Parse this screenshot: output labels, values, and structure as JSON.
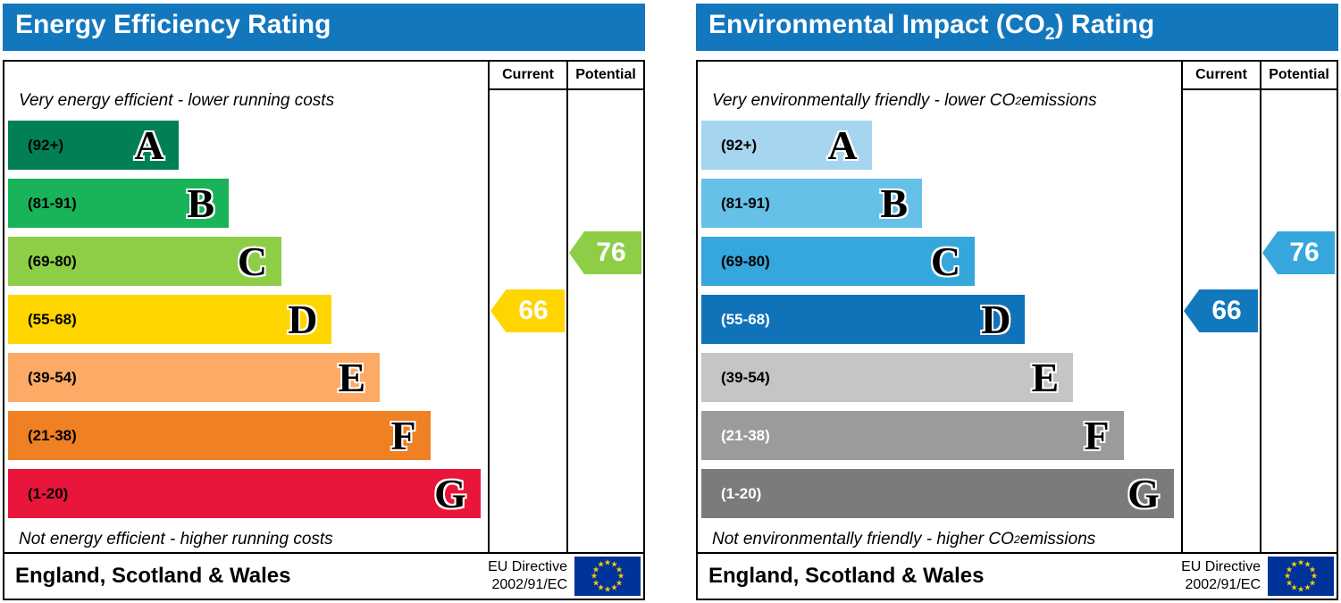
{
  "charts": [
    {
      "title": {
        "pre": "Energy Efficiency Rating",
        "sub": "",
        "post": ""
      },
      "columns": {
        "current": "Current",
        "potential": "Potential"
      },
      "top_note": {
        "pre": "Very energy efficient - lower running costs",
        "sub": "",
        "post": ""
      },
      "bottom_note": {
        "pre": "Not energy efficient - higher running costs",
        "sub": "",
        "post": ""
      },
      "bands": [
        {
          "letter": "A",
          "range": "(92+)",
          "color": "#008054",
          "label_color": "#000000",
          "width_pct": 35.5
        },
        {
          "letter": "B",
          "range": "(81-91)",
          "color": "#19b459",
          "label_color": "#000000",
          "width_pct": 46
        },
        {
          "letter": "C",
          "range": "(69-80)",
          "color": "#8dce46",
          "label_color": "#000000",
          "width_pct": 57
        },
        {
          "letter": "D",
          "range": "(55-68)",
          "color": "#ffd500",
          "label_color": "#000000",
          "width_pct": 67.5
        },
        {
          "letter": "E",
          "range": "(39-54)",
          "color": "#fcaa65",
          "label_color": "#000000",
          "width_pct": 77.5
        },
        {
          "letter": "F",
          "range": "(21-38)",
          "color": "#ef8023",
          "label_color": "#000000",
          "width_pct": 88
        },
        {
          "letter": "G",
          "range": "(1-20)",
          "color": "#e9153b",
          "label_color": "#000000",
          "width_pct": 98.5
        }
      ],
      "current": {
        "value": "66",
        "row": 3,
        "color": "#ffd500"
      },
      "potential": {
        "value": "76",
        "row": 2,
        "color": "#8dce46"
      },
      "footer": {
        "region": "England, Scotland & Wales",
        "directive_line1": "EU Directive",
        "directive_line2": "2002/91/EC"
      }
    },
    {
      "title": {
        "pre": "Environmental Impact (CO",
        "sub": "2",
        "post": ") Rating"
      },
      "columns": {
        "current": "Current",
        "potential": "Potential"
      },
      "top_note": {
        "pre": "Very environmentally friendly - lower CO",
        "sub": "2",
        "post": " emissions"
      },
      "bottom_note": {
        "pre": "Not environmentally friendly - higher CO",
        "sub": "2",
        "post": " emissions"
      },
      "bands": [
        {
          "letter": "A",
          "range": "(92+)",
          "color": "#a6d5f0",
          "label_color": "#000000",
          "width_pct": 35.5
        },
        {
          "letter": "B",
          "range": "(81-91)",
          "color": "#66c1e9",
          "label_color": "#000000",
          "width_pct": 46
        },
        {
          "letter": "C",
          "range": "(69-80)",
          "color": "#35a7dd",
          "label_color": "#000000",
          "width_pct": 57
        },
        {
          "letter": "D",
          "range": "(55-68)",
          "color": "#1072b9",
          "label_color": "#ffffff",
          "width_pct": 67.5
        },
        {
          "letter": "E",
          "range": "(39-54)",
          "color": "#c5c5c5",
          "label_color": "#000000",
          "width_pct": 77.5
        },
        {
          "letter": "F",
          "range": "(21-38)",
          "color": "#9b9b9b",
          "label_color": "#ffffff",
          "width_pct": 88
        },
        {
          "letter": "G",
          "range": "(1-20)",
          "color": "#7b7b7b",
          "label_color": "#ffffff",
          "width_pct": 98.5
        }
      ],
      "current": {
        "value": "66",
        "row": 3,
        "color": "#1278be"
      },
      "potential": {
        "value": "76",
        "row": 2,
        "color": "#35a7dd"
      },
      "footer": {
        "region": "England, Scotland & Wales",
        "directive_line1": "EU Directive",
        "directive_line2": "2002/91/EC"
      }
    }
  ],
  "icons": {
    "eu_star": "★"
  },
  "colors": {
    "header_blue": "#1377bd",
    "eu_flag_blue": "#003399",
    "eu_star_gold": "#ffcc00",
    "border": "#000000"
  },
  "chart_data": [
    {
      "type": "bar",
      "title": "Energy Efficiency Rating",
      "categories": [
        "A",
        "B",
        "C",
        "D",
        "E",
        "F",
        "G"
      ],
      "band_ranges": [
        "92+",
        "81-91",
        "69-80",
        "55-68",
        "39-54",
        "21-38",
        "1-20"
      ],
      "band_colors": [
        "#008054",
        "#19b459",
        "#8dce46",
        "#ffd500",
        "#fcaa65",
        "#ef8023",
        "#e9153b"
      ],
      "bar_lengths_pct": [
        35.5,
        46,
        57,
        67.5,
        77.5,
        88,
        98.5
      ],
      "markers": [
        {
          "label": "Current",
          "value": 66,
          "band": "D",
          "color": "#ffd500"
        },
        {
          "label": "Potential",
          "value": 76,
          "band": "C",
          "color": "#8dce46"
        }
      ],
      "annotations": {
        "top": "Very energy efficient - lower running costs",
        "bottom": "Not energy efficient - higher running costs"
      },
      "footer": "England, Scotland & Wales · EU Directive 2002/91/EC"
    },
    {
      "type": "bar",
      "title": "Environmental Impact (CO2) Rating",
      "categories": [
        "A",
        "B",
        "C",
        "D",
        "E",
        "F",
        "G"
      ],
      "band_ranges": [
        "92+",
        "81-91",
        "69-80",
        "55-68",
        "39-54",
        "21-38",
        "1-20"
      ],
      "band_colors": [
        "#a6d5f0",
        "#66c1e9",
        "#35a7dd",
        "#1072b9",
        "#c5c5c5",
        "#9b9b9b",
        "#7b7b7b"
      ],
      "bar_lengths_pct": [
        35.5,
        46,
        57,
        67.5,
        77.5,
        88,
        98.5
      ],
      "markers": [
        {
          "label": "Current",
          "value": 66,
          "band": "D",
          "color": "#1278be"
        },
        {
          "label": "Potential",
          "value": 76,
          "band": "C",
          "color": "#35a7dd"
        }
      ],
      "annotations": {
        "top": "Very environmentally friendly - lower CO2 emissions",
        "bottom": "Not environmentally friendly - higher CO2 emissions"
      },
      "footer": "England, Scotland & Wales · EU Directive 2002/91/EC"
    }
  ]
}
